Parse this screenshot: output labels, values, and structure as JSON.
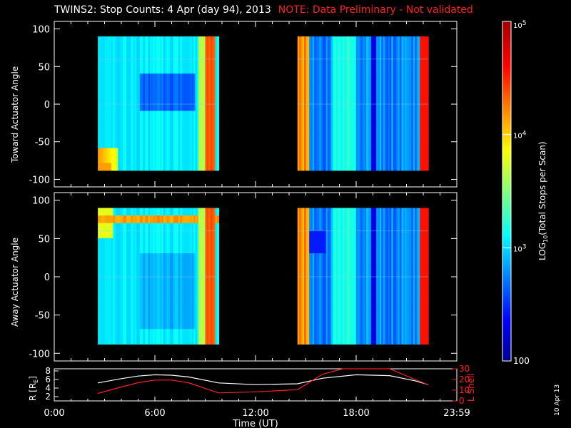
{
  "title": {
    "main": "TWINS2: Stop Counts:  4 Apr (day  94), 2013",
    "note": "NOTE: Data Preliminary - Not validated"
  },
  "colors": {
    "background": "#000000",
    "axis": "#ffffff",
    "note": "#ff2020",
    "l_shell_line": "#ff2020",
    "r_line": "#ffffff"
  },
  "chart_data": [
    {
      "type": "heatmap",
      "panel": "toward",
      "ylabel": "Toward Actuator Angle",
      "ylim": [
        -110,
        110
      ],
      "yticks": [
        100,
        50,
        0,
        -50,
        -100
      ],
      "xlim": [
        0,
        24
      ],
      "data_range_y": [
        -88,
        90
      ],
      "coverage_hours": [
        [
          2.6,
          9.8
        ],
        [
          14.5,
          22.3
        ]
      ],
      "colorscale": "log10 jet"
    },
    {
      "type": "heatmap",
      "panel": "away",
      "ylabel": "Away Actuator Angle",
      "ylim": [
        -110,
        110
      ],
      "yticks": [
        100,
        50,
        0,
        -50,
        -100
      ],
      "xlim": [
        0,
        24
      ],
      "data_range_y": [
        -88,
        90
      ],
      "coverage_hours": [
        [
          2.6,
          9.8
        ],
        [
          14.5,
          22.3
        ]
      ],
      "colorscale": "log10 jet"
    },
    {
      "type": "line",
      "panel": "orbit",
      "xlabel": "Time (UT)",
      "xticks": [
        "0:00",
        "6:00",
        "12:00",
        "18:00",
        "23:59"
      ],
      "xlim": [
        0,
        24
      ],
      "left_axis": {
        "label_prefix": "R [R",
        "label_sub": "E",
        "label_suffix": "]",
        "ylim": [
          1,
          8.5
        ],
        "yticks": [
          2,
          4,
          6,
          8
        ]
      },
      "right_axis": {
        "label": "L Shell",
        "ylim": [
          0,
          30
        ],
        "yticks": [
          0,
          10,
          20,
          30
        ]
      },
      "series": [
        {
          "name": "R",
          "axis": "left",
          "x": [
            2.6,
            4,
            5,
            6,
            7,
            8,
            9.8,
            12,
            14.5,
            16,
            18,
            20,
            21.5,
            22.3
          ],
          "y": [
            5.2,
            6.2,
            6.8,
            7.1,
            7.0,
            6.6,
            5.2,
            4.8,
            5.0,
            6.3,
            7.1,
            6.9,
            5.7,
            4.8
          ]
        },
        {
          "name": "L Shell",
          "axis": "right",
          "x": [
            2.6,
            4,
            5,
            6,
            7,
            8,
            9.8,
            12,
            14.5,
            16,
            17.2,
            20,
            21.2,
            22.3
          ],
          "y": [
            7,
            13,
            17,
            19.5,
            19.5,
            17,
            7.5,
            8.5,
            10.5,
            25,
            32,
            32,
            22,
            15
          ]
        }
      ]
    }
  ],
  "colorbar": {
    "label_prefix": "LOG",
    "label_sub": "10",
    "label_suffix": "(Total Stops per Scan)",
    "ticks": [
      {
        "mant": "10",
        "exp": "5",
        "value": 100000
      },
      {
        "mant": "10",
        "exp": "4",
        "value": 10000
      },
      {
        "mant": "10",
        "exp": "3",
        "value": 1000
      },
      {
        "mant": "100",
        "exp": "",
        "value": 100
      }
    ]
  },
  "date_stamp": "10 Apr 13"
}
